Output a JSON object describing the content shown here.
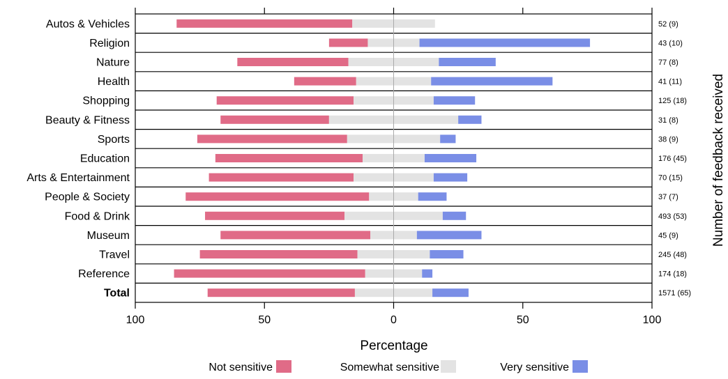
{
  "chart_data": {
    "type": "bar",
    "orientation": "horizontal-diverging",
    "categories": [
      "Autos & Vehicles",
      "Religion",
      "Nature",
      "Health",
      "Shopping",
      "Beauty & Fitness",
      "Sports",
      "Education",
      "Arts & Entertainment",
      "People & Society",
      "Food & Drink",
      "Museum",
      "Travel",
      "Reference",
      "Total"
    ],
    "bold_categories": [
      "Total"
    ],
    "series": [
      {
        "name": "Not sensitive",
        "values": [
          68,
          15,
          43,
          24,
          53,
          42,
          58,
          57,
          56,
          71,
          54,
          58,
          61,
          74,
          57
        ]
      },
      {
        "name": "Somewhat sensitive",
        "values": [
          32,
          20,
          35,
          29,
          31,
          50,
          36,
          24,
          31,
          19,
          38,
          18,
          28,
          22,
          30
        ]
      },
      {
        "name": "Very sensitive",
        "values": [
          0,
          66,
          22,
          47,
          16,
          9,
          6,
          20,
          13,
          11,
          9,
          25,
          13,
          4,
          14
        ]
      }
    ],
    "colors": {
      "Not sensitive": "#e06b87",
      "Somewhat sensitive": "#e3e3e3",
      "Very sensitive": "#7a8ee6"
    },
    "right_labels": [
      "52 (9)",
      "43 (10)",
      "77 (8)",
      "41 (11)",
      "125 (18)",
      "31 (8)",
      "38 (9)",
      "176 (45)",
      "70 (15)",
      "37 (7)",
      "493 (53)",
      "45 (9)",
      "245 (48)",
      "174 (18)",
      "1571 (65)"
    ],
    "xlabel": "Percentage",
    "right_ylabel": "Number of feedback received",
    "xticks": [
      100,
      50,
      0,
      50,
      100
    ],
    "xlim": [
      -100,
      100
    ],
    "legend_position": "bottom"
  }
}
